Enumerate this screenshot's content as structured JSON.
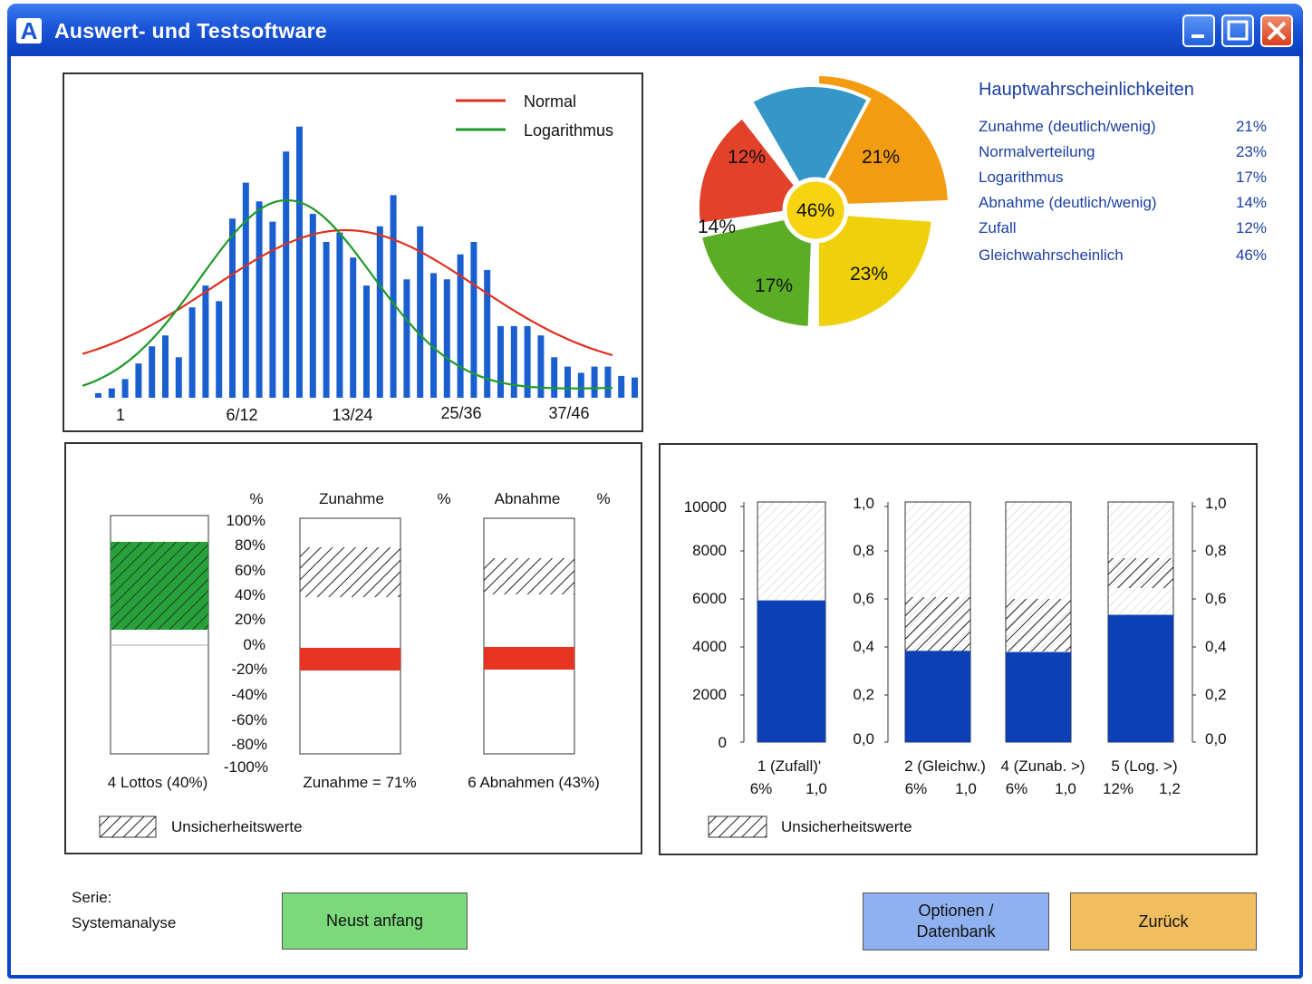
{
  "window": {
    "title": "Auswert- und Testsoftware",
    "app_icon_letter": "A"
  },
  "histogram": {
    "legend": [
      {
        "name": "Normal",
        "color": "#e03020"
      },
      {
        "name": "Logarithmus",
        "color": "#1e9a2a"
      }
    ],
    "x_tick_labels": [
      "1",
      "6/12",
      "13/24",
      "25/36",
      "37/46"
    ],
    "bar_color": "#1a5fd0"
  },
  "pie": {
    "center_label": "46%",
    "slices": [
      {
        "label": "21%",
        "value": 21,
        "color": "#f39c12"
      },
      {
        "label": "23%",
        "value": 23,
        "color": "#eed10a"
      },
      {
        "label": "17%",
        "value": 17,
        "color": "#5aad25"
      },
      {
        "label": "14%",
        "value": 14,
        "color": "#e2412a"
      },
      {
        "label": "12%",
        "value": 12,
        "color": "#3597c8"
      }
    ],
    "center_color": "#f6d40f"
  },
  "legend_panel": {
    "title": "Hauptwahrscheinlichkeiten",
    "items": [
      {
        "label": "Zunahme (deutlich/wenig)",
        "value": "21%"
      },
      {
        "label": "Normalverteilung",
        "value": "23%"
      },
      {
        "label": "Logarithmus",
        "value": "17%"
      },
      {
        "label": "Abnahme (deutlich/wenig)",
        "value": "14%"
      },
      {
        "label": "Zufall",
        "value": "12%"
      },
      {
        "label": "Gleichwahrscheinlich",
        "value": "46%"
      }
    ]
  },
  "bars_left": {
    "pct_header": "%",
    "y_ticks": [
      "100%",
      "80%",
      "60%",
      "40%",
      "20%",
      "0%",
      "-20%",
      "-40%",
      "-60%",
      "-80%",
      "-100%"
    ],
    "col2_header": "Zunahme",
    "col2_pct": "%",
    "col3_header": "Abnahme",
    "col3_pct": "%",
    "captions": [
      "4 Lottos (40%)",
      "Zunahme = 71%",
      "6 Abnahmen (43%)"
    ],
    "legend_label": "Unsicherheitswerte"
  },
  "bars_right": {
    "left_axis_ticks": [
      "10000",
      "8000",
      "6000",
      "4000",
      "2000",
      "0"
    ],
    "mid_axis_ticks": [
      "1,0",
      "0,8",
      "0,6",
      "0,4",
      "0,2",
      "0,0"
    ],
    "right_axis_ticks": [
      "1,0",
      "0,8",
      "0,6",
      "0,4",
      "0,2",
      "0,0"
    ],
    "columns": [
      {
        "label": "1 (Zufall)'",
        "sub_left": "6%",
        "sub_right": "1,0",
        "fill": 0.59
      },
      {
        "label": "2 (Gleichw.)",
        "sub_left": "6%",
        "sub_right": "1,0",
        "fill": 0.38
      },
      {
        "label": "4 (Zunab. >)",
        "sub_left": "6%",
        "sub_right": "1,0",
        "fill": 0.375
      },
      {
        "label": "5 (Log. >)",
        "sub_left": "12%",
        "sub_right": "1,2",
        "fill": 0.53
      }
    ],
    "legend_label": "Unsicherheitswerte"
  },
  "footer": {
    "serie_label": "Serie:",
    "serie_value": "Systemanalyse",
    "btn_restart": "Neust anfang",
    "btn_options_line1": "Optionen /",
    "btn_options_line2": "Datenbank",
    "btn_back": "Zurück"
  }
}
